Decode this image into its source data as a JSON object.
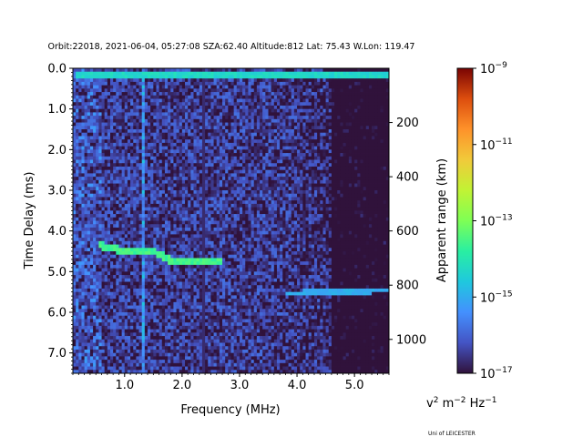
{
  "chart_data": {
    "type": "heatmap",
    "title": "Orbit:22018, 2021-06-04, 05:27:08 SZA:62.40 Altitude:812 Lat: 75.43 W.Lon: 119.47",
    "xlabel": "Frequency (MHz)",
    "ylabel": "Time Delay (ms)",
    "y2label": "Apparent range (km)",
    "xlim": [
      0.1,
      5.6
    ],
    "ylim": [
      7.5,
      0.0
    ],
    "y2lim": [
      0,
      1125
    ],
    "xticks": [
      "1.0",
      "2.0",
      "3.0",
      "4.0",
      "5.0"
    ],
    "yticks": [
      "0.0",
      "1.0",
      "2.0",
      "3.0",
      "4.0",
      "5.0",
      "6.0",
      "7.0"
    ],
    "y2ticks": [
      "200",
      "400",
      "600",
      "800",
      "1000"
    ],
    "colorbar": {
      "scale": "log",
      "range": [
        1e-17,
        1e-09
      ],
      "colormap": "turbo",
      "ticks": [
        {
          "base": "10",
          "exp": "−9"
        },
        {
          "base": "10",
          "exp": "−11"
        },
        {
          "base": "10",
          "exp": "−13"
        },
        {
          "base": "10",
          "exp": "−15"
        },
        {
          "base": "10",
          "exp": "−17"
        }
      ],
      "unit_label": {
        "a": "v",
        "a_exp": "2",
        "b": " m",
        "b_exp": "−2",
        "c": " Hz",
        "c_exp": "−1"
      }
    },
    "features": {
      "noise_floor_log": -16.5,
      "top_band_delay_ms": 0.15,
      "top_band_log": -14.3,
      "ground_echo_trace": [
        [
          0.55,
          4.35
        ],
        [
          1.0,
          4.5
        ],
        [
          1.5,
          4.5
        ],
        [
          1.8,
          4.72
        ],
        [
          2.2,
          4.75
        ],
        [
          2.7,
          4.75
        ]
      ],
      "trace_log": -13.6,
      "secondary_trace": [
        [
          3.8,
          5.55
        ],
        [
          5.6,
          5.45
        ]
      ],
      "secondary_log": -15.0,
      "dark_line_freq_mhz": 2.38,
      "bright_line_freq_mhz": 1.32,
      "dark_region_start_mhz": 4.6
    }
  },
  "footer": {
    "credit": "Uni of LEICESTER"
  }
}
